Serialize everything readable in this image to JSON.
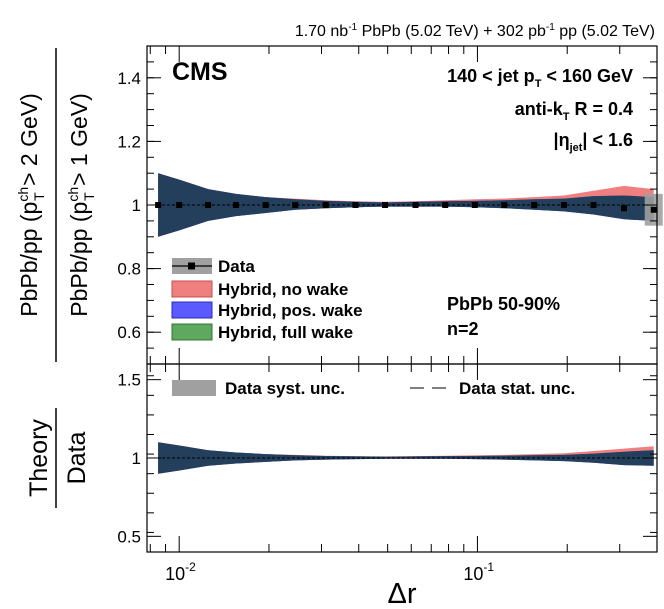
{
  "header": {
    "lumi_pbpb": "1.70",
    "lumi_pp": "302",
    "pbpb_label": "nb",
    "pp_label": "pb",
    "inv": "-1",
    "pbpb_tail": "PbPb (5.02 TeV) +",
    "pp_tail": "pp (5.02 TeV)"
  },
  "labels": {
    "cms": "CMS",
    "jet_pt_a": "140 < jet p",
    "jet_pt_sub": "T",
    "jet_pt_b": " < 160 GeV",
    "antikt_a": "anti-k",
    "antikt_sub": "T",
    "antikt_b": " R = 0.4",
    "eta_a": "|η",
    "eta_sub": "jet",
    "eta_b": "| < 1.6",
    "centrality": "PbPb 50-90%",
    "n": "n=2",
    "ylabel_top_outer_a": "PbPb/pp (p",
    "ylabel_top_outer_sup": "ch",
    "ylabel_top_outer_sub": "T",
    "ylabel_top_outer_b": " > 2 GeV)",
    "ylabel_top_inner_a": "PbPb/pp (p",
    "ylabel_top_inner_sup": "ch",
    "ylabel_top_inner_sub": "T",
    "ylabel_top_inner_b": " > 1 GeV)",
    "ylabel_bottom_num": "Theory",
    "ylabel_bottom_den": "Data",
    "xlabel": "Δr"
  },
  "legend": {
    "data": "Data",
    "no_wake": "Hybrid, no wake",
    "pos_wake": "Hybrid, pos. wake",
    "full_wake": "Hybrid, full wake",
    "syst": "Data syst. unc.",
    "stat": "Data stat. unc."
  },
  "colors": {
    "no_wake": "#f08080",
    "pos_wake": "#5a5aff",
    "full_wake": "#5fa85f",
    "overlap": "#243f5c",
    "syst": "#a0a0a0"
  },
  "chart_data": [
    {
      "type": "line",
      "x_scale": "log",
      "xlim": [
        0.0078,
        0.4
      ],
      "ylim": [
        0.5,
        1.5
      ],
      "y_ticks": [
        0.6,
        0.8,
        1,
        1.2,
        1.4
      ],
      "y_tick_labels": [
        "0.6",
        "0.8",
        "1",
        "1.2",
        "1.4"
      ],
      "x": [
        0.0085,
        0.01,
        0.0125,
        0.0155,
        0.0195,
        0.0245,
        0.031,
        0.039,
        0.049,
        0.062,
        0.078,
        0.098,
        0.123,
        0.155,
        0.195,
        0.245,
        0.31,
        0.39
      ],
      "data": [
        1.0,
        1.0,
        1.0,
        1.0,
        1.0,
        1.0,
        1.0,
        1.0,
        1.0,
        1.0,
        1.0,
        1.0,
        1.0,
        1.0,
        1.0,
        1.0,
        0.99,
        0.985
      ],
      "series": [
        {
          "name": "Hybrid, no wake",
          "lower": [
            0.9,
            0.92,
            0.95,
            0.965,
            0.975,
            0.985,
            0.99,
            0.993,
            0.995,
            0.995,
            0.995,
            0.995,
            0.993,
            0.99,
            0.985,
            0.975,
            0.965,
            0.96
          ],
          "upper": [
            1.1,
            1.08,
            1.05,
            1.035,
            1.025,
            1.02,
            1.015,
            1.012,
            1.01,
            1.012,
            1.015,
            1.018,
            1.02,
            1.025,
            1.03,
            1.045,
            1.06,
            1.05
          ]
        },
        {
          "name": "Hybrid, pos. wake",
          "lower": [
            0.9,
            0.92,
            0.95,
            0.965,
            0.975,
            0.985,
            0.99,
            0.993,
            0.995,
            0.995,
            0.995,
            0.993,
            0.99,
            0.985,
            0.98,
            0.97,
            0.955,
            0.95
          ],
          "upper": [
            1.1,
            1.08,
            1.05,
            1.035,
            1.025,
            1.018,
            1.013,
            1.01,
            1.008,
            1.01,
            1.012,
            1.013,
            1.015,
            1.018,
            1.02,
            1.028,
            1.03,
            1.025
          ]
        },
        {
          "name": "Hybrid, full wake",
          "lower": [
            0.9,
            0.92,
            0.95,
            0.965,
            0.975,
            0.985,
            0.99,
            0.993,
            0.995,
            0.995,
            0.995,
            0.993,
            0.99,
            0.985,
            0.98,
            0.97,
            0.955,
            0.95
          ],
          "upper": [
            1.1,
            1.08,
            1.05,
            1.035,
            1.025,
            1.018,
            1.013,
            1.01,
            1.008,
            1.01,
            1.012,
            1.013,
            1.015,
            1.018,
            1.02,
            1.028,
            1.03,
            1.025
          ]
        }
      ],
      "legend": "left"
    },
    {
      "type": "line",
      "x_scale": "log",
      "xlim": [
        0.0078,
        0.4
      ],
      "ylim": [
        0.4,
        1.6
      ],
      "y_ticks": [
        0.5,
        1,
        1.5
      ],
      "y_tick_labels": [
        "0.5",
        "1",
        "1.5"
      ],
      "x_ticks": [
        0.01,
        0.1
      ],
      "x_tick_labels": [
        "10",
        "10"
      ],
      "x_tick_exponents": [
        "-2",
        "-1"
      ],
      "xlabel": "Δr",
      "x": [
        0.0085,
        0.01,
        0.0125,
        0.0155,
        0.0195,
        0.0245,
        0.031,
        0.039,
        0.049,
        0.062,
        0.078,
        0.098,
        0.123,
        0.155,
        0.195,
        0.245,
        0.31,
        0.39
      ],
      "series": [
        {
          "name": "Hybrid, no wake",
          "lower": [
            0.9,
            0.92,
            0.95,
            0.965,
            0.975,
            0.985,
            0.99,
            0.993,
            0.995,
            0.995,
            0.995,
            0.995,
            0.993,
            0.99,
            0.985,
            0.975,
            0.965,
            0.96
          ],
          "upper": [
            1.1,
            1.08,
            1.05,
            1.035,
            1.025,
            1.02,
            1.015,
            1.012,
            1.01,
            1.012,
            1.015,
            1.018,
            1.02,
            1.025,
            1.03,
            1.045,
            1.06,
            1.075
          ]
        },
        {
          "name": "Hybrid, pos. wake",
          "lower": [
            0.9,
            0.92,
            0.95,
            0.965,
            0.975,
            0.985,
            0.99,
            0.993,
            0.995,
            0.995,
            0.995,
            0.993,
            0.99,
            0.985,
            0.98,
            0.97,
            0.955,
            0.95
          ],
          "upper": [
            1.1,
            1.08,
            1.05,
            1.035,
            1.025,
            1.018,
            1.013,
            1.01,
            1.008,
            1.01,
            1.012,
            1.013,
            1.015,
            1.018,
            1.02,
            1.028,
            1.04,
            1.05
          ]
        },
        {
          "name": "Hybrid, full wake",
          "lower": [
            0.9,
            0.92,
            0.95,
            0.965,
            0.975,
            0.985,
            0.99,
            0.993,
            0.995,
            0.995,
            0.995,
            0.993,
            0.99,
            0.985,
            0.98,
            0.97,
            0.955,
            0.95
          ],
          "upper": [
            1.1,
            1.08,
            1.05,
            1.035,
            1.025,
            1.018,
            1.013,
            1.01,
            1.008,
            1.01,
            1.012,
            1.013,
            1.015,
            1.018,
            1.02,
            1.028,
            1.04,
            1.05
          ]
        }
      ],
      "legend": "top"
    }
  ]
}
